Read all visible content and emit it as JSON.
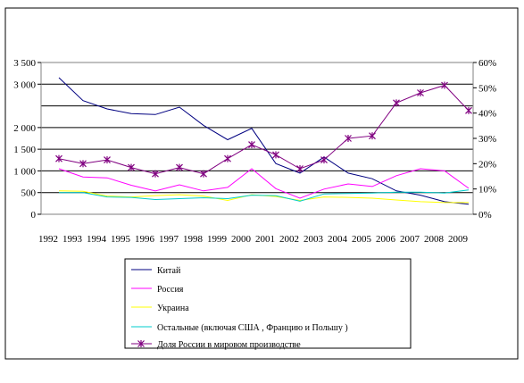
{
  "chart_data": {
    "type": "line",
    "x": [
      "1992",
      "1993",
      "1994",
      "1995",
      "1996",
      "1997",
      "1998",
      "1999",
      "2000",
      "2001",
      "2002",
      "2003",
      "2004",
      "2005",
      "2006",
      "2007",
      "2008",
      "2009"
    ],
    "y_left_ticks": [
      {
        "label": "0",
        "value": 0
      },
      {
        "label": "500",
        "value": 500
      },
      {
        "label": "1 000",
        "value": 1000
      },
      {
        "label": "1 500",
        "value": 1500
      },
      {
        "label": "2 000",
        "value": 2000
      },
      {
        "label": "3 000",
        "value": 3000
      },
      {
        "label": "3 500",
        "value": 3500
      }
    ],
    "y_right_ticks": [
      "0%",
      "10%",
      "20%",
      "30%",
      "40%",
      "50%",
      "60%"
    ],
    "ylim_left": [
      0,
      3500
    ],
    "ylim_right": [
      0,
      60
    ],
    "gridlines": [
      500,
      1000,
      1500,
      2000,
      2500,
      3000,
      3500
    ],
    "series": [
      {
        "name": "Китай",
        "color": "#000080",
        "axis": "left",
        "marker": "none",
        "values": [
          3150,
          2620,
          2430,
          2320,
          2300,
          2470,
          2050,
          1720,
          1980,
          1170,
          950,
          1320,
          950,
          820,
          540,
          440,
          290,
          230
        ]
      },
      {
        "name": "Россия",
        "color": "#ff00ff",
        "axis": "left",
        "marker": "none",
        "values": [
          1050,
          860,
          840,
          670,
          540,
          680,
          540,
          620,
          1050,
          590,
          370,
          580,
          700,
          640,
          890,
          1050,
          1000,
          600
        ]
      },
      {
        "name": "Украина",
        "color": "#ffff00",
        "axis": "left",
        "marker": "none",
        "values": [
          540,
          530,
          420,
          400,
          430,
          450,
          420,
          320,
          450,
          410,
          320,
          400,
          390,
          370,
          330,
          290,
          270,
          270
        ]
      },
      {
        "name": "Остальные    (включая США  , Францию и Польшу    )",
        "color": "#00cccc",
        "axis": "left",
        "marker": "none",
        "values": [
          500,
          500,
          400,
          390,
          340,
          360,
          380,
          360,
          440,
          430,
          300,
          470,
          480,
          490,
          510,
          510,
          490,
          560
        ]
      },
      {
        "name": "Доля России в мировом производстве",
        "color": "#800080",
        "axis": "right",
        "marker": "asterisk",
        "values": [
          22,
          20,
          21.5,
          18.5,
          16,
          18.5,
          16,
          22,
          27.5,
          23.5,
          18,
          21.5,
          30,
          31,
          44,
          48,
          51,
          41
        ]
      }
    ],
    "legend_position": "bottom"
  }
}
